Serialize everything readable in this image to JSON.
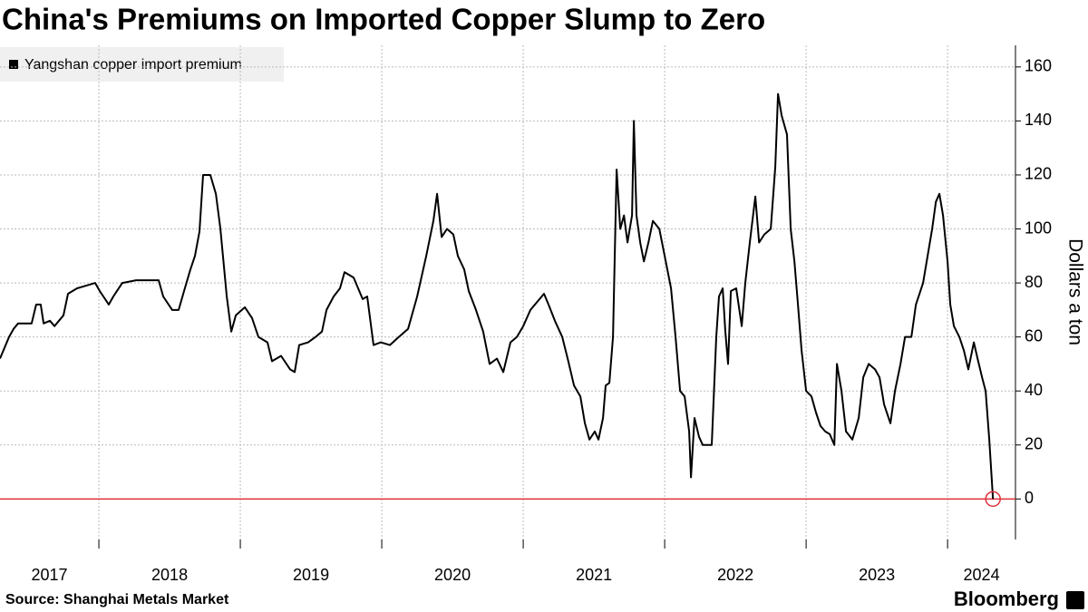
{
  "chart_data": {
    "type": "line",
    "title": "China's Premiums on Imported Copper Slump to Zero",
    "y_label": "Dollars a ton",
    "source": "Source: Shanghai Metals Market",
    "logo": "Bloomberg",
    "x": [
      2017.301,
      2017.365,
      2017.397,
      2017.429,
      2017.525,
      2017.557,
      2017.589,
      2017.609,
      2017.654,
      2017.686,
      2017.75,
      2017.782,
      2017.846,
      2017.91,
      2017.974,
      2018.006,
      2018.07,
      2018.102,
      2018.166,
      2018.263,
      2018.423,
      2018.455,
      2018.519,
      2018.564,
      2018.602,
      2018.647,
      2018.679,
      2018.711,
      2018.737,
      2018.788,
      2018.827,
      2018.859,
      2018.904,
      2018.936,
      2018.968,
      2019.032,
      2019.083,
      2019.128,
      2019.192,
      2019.224,
      2019.288,
      2019.352,
      2019.384,
      2019.416,
      2019.48,
      2019.532,
      2019.577,
      2019.609,
      2019.66,
      2019.705,
      2019.737,
      2019.801,
      2019.865,
      2019.897,
      2019.942,
      2019.993,
      2020.057,
      2020.121,
      2020.186,
      2020.25,
      2020.314,
      2020.365,
      2020.391,
      2020.423,
      2020.461,
      2020.506,
      2020.538,
      2020.583,
      2020.615,
      2020.666,
      2020.717,
      2020.762,
      2020.814,
      2020.859,
      2020.91,
      2020.955,
      2021.0,
      2021.051,
      2021.147,
      2021.179,
      2021.224,
      2021.276,
      2021.314,
      2021.359,
      2021.404,
      2021.436,
      2021.468,
      2021.506,
      2021.532,
      2021.564,
      2021.583,
      2021.609,
      2021.635,
      2021.66,
      2021.686,
      2021.712,
      2021.737,
      2021.769,
      2021.782,
      2021.801,
      2021.827,
      2021.853,
      2021.885,
      2021.917,
      2021.962,
      2022.0,
      2022.045,
      2022.077,
      2022.109,
      2022.141,
      2022.173,
      2022.186,
      2022.211,
      2022.243,
      2022.269,
      2022.333,
      2022.365,
      2022.384,
      2022.41,
      2022.429,
      2022.448,
      2022.468,
      2022.506,
      2022.545,
      2022.57,
      2022.602,
      2022.641,
      2022.667,
      2022.705,
      2022.75,
      2022.782,
      2022.801,
      2022.827,
      2022.865,
      2022.891,
      2022.917,
      2022.942,
      2022.968,
      2023.0,
      2023.038,
      2023.07,
      2023.102,
      2023.135,
      2023.167,
      2023.199,
      2023.218,
      2023.25,
      2023.282,
      2023.327,
      2023.372,
      2023.404,
      2023.442,
      2023.487,
      2023.519,
      2023.551,
      2023.596,
      2023.628,
      2023.667,
      2023.699,
      2023.744,
      2023.776,
      2023.827,
      2023.859,
      2023.891,
      2023.917,
      2023.942,
      2023.968,
      2024.0,
      2024.019,
      2024.045,
      2024.083,
      2024.115,
      2024.147,
      2024.186,
      2024.212,
      2024.244,
      2024.269,
      2024.295,
      2024.321
    ],
    "series": [
      {
        "name": "Yangshan copper import premium",
        "color": "#000000",
        "values": [
          52,
          60,
          63,
          65,
          65,
          72,
          72,
          65,
          66,
          64,
          68,
          76,
          78,
          79,
          80,
          77,
          72,
          75,
          80,
          81,
          81,
          75,
          70,
          70,
          77,
          85,
          90,
          99,
          120,
          120,
          113,
          100,
          75,
          62,
          68,
          71,
          67,
          60,
          58,
          51,
          53,
          48,
          47,
          57,
          58,
          60,
          62,
          70,
          75,
          78,
          84,
          82,
          74,
          75,
          57,
          58,
          57,
          60,
          63,
          75,
          90,
          103,
          113,
          97,
          100,
          98,
          90,
          85,
          77,
          70,
          62,
          50,
          52,
          47,
          58,
          60,
          64,
          70,
          76,
          72,
          66,
          60,
          52,
          42,
          38,
          28,
          22,
          25,
          22,
          30,
          42,
          43,
          60,
          122,
          100,
          105,
          95,
          105,
          140,
          105,
          95,
          88,
          95,
          103,
          100,
          90,
          78,
          60,
          40,
          38,
          25,
          8,
          30,
          23,
          20,
          20,
          60,
          75,
          78,
          62,
          50,
          77,
          78,
          64,
          80,
          95,
          112,
          95,
          98,
          100,
          123,
          150,
          142,
          135,
          100,
          88,
          72,
          55,
          40,
          38,
          32,
          27,
          25,
          24,
          20,
          50,
          40,
          25,
          22,
          30,
          45,
          50,
          48,
          45,
          35,
          28,
          40,
          50,
          60,
          60,
          72,
          80,
          90,
          100,
          110,
          113,
          105,
          88,
          72,
          64,
          60,
          55,
          48,
          58,
          52,
          45,
          40,
          22,
          0
        ]
      }
    ],
    "xlim": [
      2017.301,
      2024.48
    ],
    "xticks": [
      {
        "value": 2017,
        "label": "2017"
      },
      {
        "value": 2018,
        "label": "2018"
      },
      {
        "value": 2019,
        "label": "2019"
      },
      {
        "value": 2020,
        "label": "2020"
      },
      {
        "value": 2021,
        "label": "2021"
      },
      {
        "value": 2022,
        "label": "2022"
      },
      {
        "value": 2023,
        "label": "2023"
      },
      {
        "value": 2024,
        "label": "2024"
      }
    ],
    "ylim": [
      -15,
      168
    ],
    "yticks": [
      0,
      20,
      40,
      60,
      80,
      100,
      120,
      140,
      160
    ],
    "grid": true,
    "reference_line": {
      "value": 0,
      "color": "#e0303a"
    },
    "end_marker_color": "#e0303a"
  }
}
